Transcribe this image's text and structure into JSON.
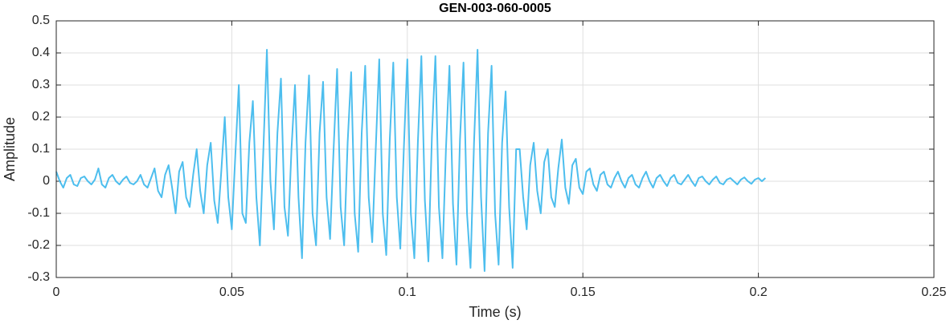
{
  "chart_data": {
    "type": "line",
    "title": "GEN-003-060-0005",
    "x_label": "Time (s)",
    "y_label": "Amplitude",
    "x": [
      0,
      0.001,
      0.002,
      0.003,
      0.004,
      0.005,
      0.006,
      0.007,
      0.008,
      0.009,
      0.01,
      0.011,
      0.012,
      0.013,
      0.014,
      0.015,
      0.016,
      0.017,
      0.018,
      0.019,
      0.02,
      0.021,
      0.022,
      0.023,
      0.024,
      0.025,
      0.026,
      0.027,
      0.028,
      0.029,
      0.03,
      0.031,
      0.032,
      0.033,
      0.034,
      0.035,
      0.036,
      0.037,
      0.038,
      0.039,
      0.04,
      0.041,
      0.042,
      0.043,
      0.044,
      0.045,
      0.046,
      0.047,
      0.048,
      0.049,
      0.05,
      0.051,
      0.052,
      0.053,
      0.054,
      0.055,
      0.056,
      0.057,
      0.058,
      0.059,
      0.06,
      0.061,
      0.062,
      0.063,
      0.064,
      0.065,
      0.066,
      0.067,
      0.068,
      0.069,
      0.07,
      0.071,
      0.072,
      0.073,
      0.074,
      0.075,
      0.076,
      0.077,
      0.078,
      0.079,
      0.08,
      0.081,
      0.082,
      0.083,
      0.084,
      0.085,
      0.086,
      0.087,
      0.088,
      0.089,
      0.09,
      0.091,
      0.092,
      0.093,
      0.094,
      0.095,
      0.096,
      0.097,
      0.098,
      0.099,
      0.1,
      0.101,
      0.102,
      0.103,
      0.104,
      0.105,
      0.106,
      0.107,
      0.108,
      0.109,
      0.11,
      0.111,
      0.112,
      0.113,
      0.114,
      0.115,
      0.116,
      0.117,
      0.118,
      0.119,
      0.12,
      0.121,
      0.122,
      0.123,
      0.124,
      0.125,
      0.126,
      0.127,
      0.128,
      0.129,
      0.13,
      0.131,
      0.132,
      0.133,
      0.134,
      0.135,
      0.136,
      0.137,
      0.138,
      0.139,
      0.14,
      0.141,
      0.142,
      0.143,
      0.144,
      0.145,
      0.146,
      0.147,
      0.148,
      0.149,
      0.15,
      0.151,
      0.152,
      0.153,
      0.154,
      0.155,
      0.156,
      0.157,
      0.158,
      0.159,
      0.16,
      0.161,
      0.162,
      0.163,
      0.164,
      0.165,
      0.166,
      0.167,
      0.168,
      0.169,
      0.17,
      0.171,
      0.172,
      0.173,
      0.174,
      0.175,
      0.176,
      0.177,
      0.178,
      0.179,
      0.18,
      0.181,
      0.182,
      0.183,
      0.184,
      0.185,
      0.186,
      0.187,
      0.188,
      0.189,
      0.19,
      0.191,
      0.192,
      0.193,
      0.194,
      0.195,
      0.196,
      0.197,
      0.198,
      0.199,
      0.2,
      0.201,
      0.202
    ],
    "series": [
      {
        "color": "#4dbeee",
        "values": [
          0.03,
          0.0,
          -0.02,
          0.01,
          0.02,
          -0.01,
          -0.015,
          0.01,
          0.015,
          0.0,
          -0.01,
          0.005,
          0.04,
          -0.01,
          -0.02,
          0.01,
          0.02,
          0.0,
          -0.01,
          0.005,
          0.015,
          -0.005,
          -0.01,
          0.0,
          0.02,
          -0.01,
          -0.02,
          0.01,
          0.04,
          -0.03,
          -0.05,
          0.02,
          0.05,
          -0.02,
          -0.1,
          0.03,
          0.06,
          -0.05,
          -0.08,
          0.02,
          0.1,
          -0.03,
          -0.1,
          0.05,
          0.12,
          -0.06,
          -0.13,
          0.03,
          0.2,
          -0.05,
          -0.15,
          0.08,
          0.3,
          -0.1,
          -0.13,
          0.12,
          0.25,
          -0.05,
          -0.2,
          0.1,
          0.41,
          0.0,
          -0.15,
          0.15,
          0.32,
          -0.08,
          -0.17,
          0.1,
          0.3,
          -0.05,
          -0.24,
          0.12,
          0.33,
          -0.1,
          -0.2,
          0.15,
          0.31,
          -0.05,
          -0.18,
          0.1,
          0.35,
          -0.08,
          -0.2,
          0.12,
          0.34,
          -0.1,
          -0.22,
          0.15,
          0.36,
          -0.05,
          -0.19,
          0.1,
          0.38,
          -0.1,
          -0.23,
          0.13,
          0.37,
          -0.05,
          -0.21,
          0.1,
          0.38,
          -0.1,
          -0.24,
          0.12,
          0.39,
          -0.06,
          -0.25,
          0.14,
          0.39,
          -0.08,
          -0.24,
          0.1,
          0.36,
          -0.07,
          -0.26,
          0.13,
          0.37,
          -0.1,
          -0.27,
          0.12,
          0.41,
          -0.05,
          -0.28,
          0.15,
          0.36,
          -0.1,
          -0.26,
          0.12,
          0.28,
          -0.08,
          -0.27,
          0.1,
          0.1,
          -0.05,
          -0.15,
          0.05,
          0.12,
          -0.03,
          -0.1,
          0.06,
          0.1,
          -0.05,
          -0.08,
          0.04,
          0.13,
          -0.02,
          -0.07,
          0.05,
          0.07,
          -0.02,
          -0.04,
          0.03,
          0.04,
          -0.01,
          -0.03,
          0.02,
          0.03,
          -0.01,
          -0.02,
          0.01,
          0.03,
          0.0,
          -0.02,
          0.01,
          0.02,
          -0.01,
          -0.02,
          0.01,
          0.03,
          0.0,
          -0.02,
          0.01,
          0.02,
          0.0,
          -0.015,
          0.01,
          0.02,
          -0.005,
          -0.01,
          0.005,
          0.02,
          0.0,
          -0.015,
          0.01,
          0.015,
          0.0,
          -0.01,
          0.005,
          0.015,
          -0.005,
          -0.01,
          0.005,
          0.01,
          0.0,
          -0.01,
          0.005,
          0.012,
          0.0,
          -0.008,
          0.005,
          0.01,
          0.0,
          0.01
        ]
      }
    ],
    "xlim": [
      0,
      0.25
    ],
    "xticks": [
      0,
      0.05,
      0.1,
      0.15,
      0.2,
      0.25
    ],
    "ylim": [
      -0.3,
      0.5
    ],
    "yticks": [
      -0.3,
      -0.2,
      -0.1,
      0,
      0.1,
      0.2,
      0.3,
      0.4,
      0.5
    ],
    "grid": true
  }
}
